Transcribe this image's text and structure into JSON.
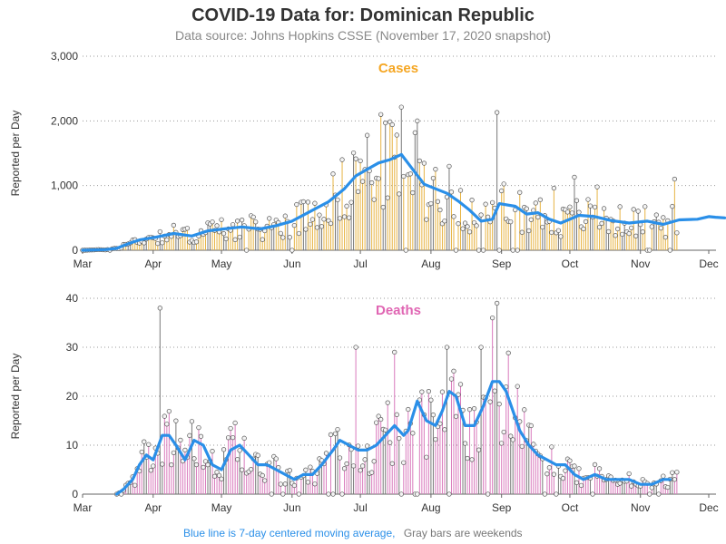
{
  "title": "COVID-19 Data for: Dominican Republic",
  "subtitle": "Data source: Johns Hopkins CSSE (November 17, 2020 snapshot)",
  "footer": {
    "avg_note": "Blue line is 7-day centered moving average,",
    "weekend_note": "Gray bars are weekends"
  },
  "colors": {
    "cases": "#f5a623",
    "deaths": "#e066b3",
    "average": "#2a8fe8",
    "weekend": "#777777",
    "cases_bar": "#e7b444",
    "deaths_bar": "#d97bbd"
  },
  "chart_data": [
    {
      "type": "bar",
      "name": "cases",
      "title": "Cases",
      "xlabel": "",
      "ylabel": "Reported per Day",
      "ylim": [
        0,
        3000
      ],
      "yticks": [
        "0",
        "1,000",
        "2,000",
        "3,000"
      ],
      "yticks_values": [
        0,
        1000,
        2000,
        3000
      ],
      "xticks": [
        "Mar",
        "Apr",
        "May",
        "Jun",
        "Jul",
        "Aug",
        "Sep",
        "Oct",
        "Nov",
        "Dec"
      ],
      "grid": true,
      "series": [
        {
          "name": "7-day centered moving average",
          "values": [
            [
              0,
              0
            ],
            [
              10,
              10
            ],
            [
              15,
              30
            ],
            [
              20,
              100
            ],
            [
              25,
              160
            ],
            [
              32,
              200
            ],
            [
              40,
              260
            ],
            [
              48,
              220
            ],
            [
              55,
              300
            ],
            [
              62,
              330
            ],
            [
              70,
              360
            ],
            [
              78,
              330
            ],
            [
              85,
              380
            ],
            [
              92,
              450
            ],
            [
              100,
              600
            ],
            [
              108,
              750
            ],
            [
              115,
              950
            ],
            [
              120,
              1150
            ],
            [
              125,
              1250
            ],
            [
              130,
              1350
            ],
            [
              135,
              1400
            ],
            [
              140,
              1480
            ],
            [
              145,
              1250
            ],
            [
              150,
              1020
            ],
            [
              155,
              950
            ],
            [
              160,
              880
            ],
            [
              165,
              760
            ],
            [
              170,
              620
            ],
            [
              175,
              450
            ],
            [
              180,
              480
            ],
            [
              183,
              720
            ],
            [
              190,
              680
            ],
            [
              195,
              560
            ],
            [
              200,
              580
            ],
            [
              205,
              480
            ],
            [
              210,
              420
            ],
            [
              218,
              540
            ],
            [
              225,
              520
            ],
            [
              232,
              460
            ],
            [
              240,
              420
            ],
            [
              248,
              450
            ],
            [
              255,
              400
            ],
            [
              262,
              470
            ],
            [
              270,
              480
            ],
            [
              275,
              520
            ],
            [
              278,
              510
            ],
            [
              282,
              500
            ]
          ]
        }
      ],
      "daily_peaks": [
        [
          147,
          2000
        ],
        [
          182,
          2130
        ],
        [
          207,
          960
        ],
        [
          216,
          1130
        ],
        [
          226,
          980
        ],
        [
          260,
          1100
        ],
        [
          274,
          910
        ]
      ]
    },
    {
      "type": "bar",
      "name": "deaths",
      "title": "Deaths",
      "xlabel": "",
      "ylabel": "Reported per Day",
      "ylim": [
        0,
        40
      ],
      "yticks": [
        "0",
        "10",
        "20",
        "30",
        "40"
      ],
      "yticks_values": [
        0,
        10,
        20,
        30,
        40
      ],
      "xticks": [
        "Mar",
        "Apr",
        "May",
        "Jun",
        "Jul",
        "Aug",
        "Sep",
        "Oct",
        "Nov",
        "Dec"
      ],
      "grid": true,
      "series": [
        {
          "name": "7-day centered moving average",
          "values": [
            [
              15,
              0
            ],
            [
              18,
              1
            ],
            [
              22,
              3
            ],
            [
              25,
              6
            ],
            [
              28,
              8
            ],
            [
              31,
              7
            ],
            [
              35,
              12
            ],
            [
              38,
              12
            ],
            [
              41,
              10
            ],
            [
              45,
              7
            ],
            [
              49,
              11
            ],
            [
              53,
              10
            ],
            [
              57,
              6
            ],
            [
              61,
              5
            ],
            [
              65,
              9
            ],
            [
              69,
              10
            ],
            [
              73,
              8
            ],
            [
              77,
              6
            ],
            [
              81,
              6
            ],
            [
              85,
              5
            ],
            [
              89,
              4
            ],
            [
              93,
              3
            ],
            [
              97,
              4
            ],
            [
              101,
              4
            ],
            [
              105,
              6
            ],
            [
              110,
              9
            ],
            [
              113,
              11
            ],
            [
              117,
              10
            ],
            [
              121,
              9
            ],
            [
              125,
              9
            ],
            [
              129,
              10
            ],
            [
              133,
              12
            ],
            [
              137,
              14
            ],
            [
              141,
              12
            ],
            [
              143,
              13
            ],
            [
              147,
              19
            ],
            [
              151,
              15
            ],
            [
              155,
              14
            ],
            [
              158,
              17
            ],
            [
              161,
              21
            ],
            [
              164,
              20
            ],
            [
              168,
              14
            ],
            [
              172,
              14
            ],
            [
              176,
              18
            ],
            [
              180,
              23
            ],
            [
              183,
              23
            ],
            [
              186,
              21
            ],
            [
              189,
              17
            ],
            [
              192,
              13
            ],
            [
              196,
              10
            ],
            [
              200,
              8
            ],
            [
              204,
              7
            ],
            [
              208,
              6
            ],
            [
              212,
              6
            ],
            [
              216,
              4
            ],
            [
              220,
              3
            ],
            [
              225,
              4
            ],
            [
              230,
              3
            ],
            [
              235,
              3
            ],
            [
              240,
              3
            ],
            [
              245,
              2
            ],
            [
              250,
              2
            ],
            [
              255,
              3
            ],
            [
              258,
              3
            ]
          ]
        }
      ],
      "daily_peaks": [
        [
          34,
          38
        ],
        [
          120,
          30
        ],
        [
          137,
          29
        ],
        [
          160,
          30
        ],
        [
          175,
          30
        ],
        [
          180,
          36
        ],
        [
          182,
          39
        ]
      ]
    }
  ]
}
